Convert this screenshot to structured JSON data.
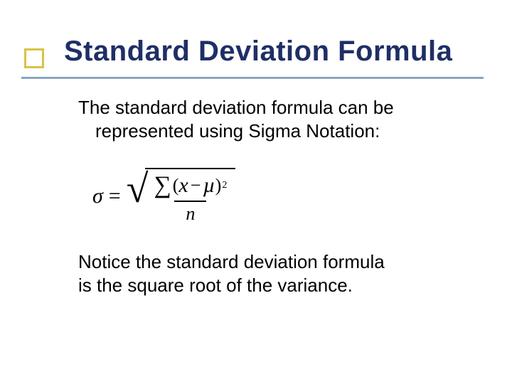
{
  "accent": {
    "border_color": "#d9c24a",
    "underline_color": "#8aa6c1"
  },
  "title": {
    "text": "Standard Deviation Formula",
    "color": "#1f2f66",
    "fontsize": 40
  },
  "body": {
    "line1": "The standard deviation formula can be",
    "line2": "represented using Sigma Notation:",
    "note_line1": "Notice the standard deviation formula",
    "note_line2": "is the square root of the variance.",
    "text_color": "#000000",
    "fontsize": 26
  },
  "formula": {
    "lhs": "σ",
    "eq": "=",
    "sum_symbol": "∑",
    "lparen": "(",
    "var": "x",
    "minus": "−",
    "mean": "µ",
    "rparen": ")",
    "power": "2",
    "denominator": "n",
    "color": "#000000"
  }
}
